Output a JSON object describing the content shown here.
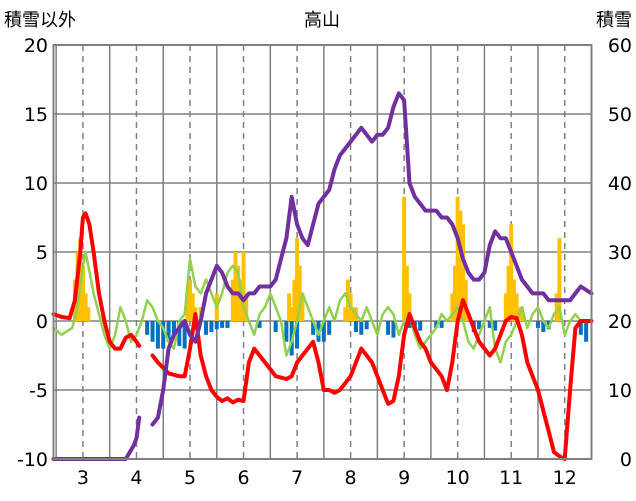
{
  "chart_data": {
    "type": "line",
    "title": "高山",
    "ylabel": "積雪以外",
    "y2label": "積雪",
    "ylim": [
      -10,
      20
    ],
    "y2lim": [
      0,
      60
    ],
    "xlim": [
      2.45,
      12.5
    ],
    "yticks": [
      "20",
      "15",
      "10",
      "5",
      "0",
      "-5",
      "-10"
    ],
    "y2ticks": [
      "60",
      "50",
      "40",
      "30",
      "20",
      "10",
      "0"
    ],
    "xticks": [
      "3",
      "4",
      "5",
      "6",
      "7",
      "8",
      "9",
      "10",
      "11",
      "12"
    ],
    "grid": true,
    "colors": {
      "red_line": "#ff0000",
      "purple_line": "#7030a0",
      "green_line": "#92d050",
      "yellow_bar": "#ffc000",
      "blue_bar": "#0070c0"
    },
    "series": [
      {
        "color": "#ff0000",
        "axis": "left",
        "type": "line",
        "x": [
          2.45,
          2.6,
          2.75,
          2.85,
          2.95,
          3.0,
          3.05,
          3.12,
          3.2,
          3.3,
          3.4,
          3.5,
          3.6,
          3.7,
          3.8,
          3.9,
          4.0,
          4.05,
          null,
          4.3,
          4.4,
          4.6,
          4.8,
          4.9,
          5.0,
          5.1,
          5.2,
          5.3,
          5.4,
          5.5,
          5.6,
          5.7,
          5.8,
          5.9,
          6.0,
          6.1,
          6.2,
          6.4,
          6.6,
          6.8,
          6.9,
          7.0,
          7.1,
          7.2,
          7.3,
          7.4,
          7.5,
          7.6,
          7.7,
          7.8,
          7.9,
          8.0,
          8.1,
          8.2,
          8.3,
          8.4,
          8.5,
          8.6,
          8.7,
          8.8,
          8.9,
          9.0,
          9.1,
          9.2,
          9.3,
          9.4,
          9.5,
          9.6,
          9.7,
          9.8,
          9.9,
          10.0,
          10.1,
          10.2,
          10.3,
          10.4,
          10.5,
          10.6,
          10.7,
          10.8,
          10.9,
          11.0,
          11.1,
          11.2,
          11.3,
          11.4,
          11.5,
          11.6,
          11.7,
          11.8,
          11.9,
          12.0,
          12.1,
          12.2,
          12.3,
          12.5
        ],
        "y": [
          0.5,
          0.3,
          0.2,
          1.5,
          5.0,
          7.5,
          7.8,
          7.0,
          5.0,
          2.0,
          0.0,
          -1.5,
          -2.0,
          -2.0,
          -1.2,
          -1.0,
          -1.5,
          -1.8,
          null,
          -2.5,
          -3.0,
          -3.8,
          -4.0,
          -4.0,
          -2.0,
          0.5,
          -2.5,
          -4.0,
          -5.0,
          -5.5,
          -5.8,
          -5.6,
          -5.9,
          -5.7,
          -5.8,
          -3.0,
          -2.0,
          -3.0,
          -4.0,
          -4.2,
          -4.0,
          -3.0,
          -2.5,
          -2.0,
          -1.5,
          -3.0,
          -5.0,
          -5.0,
          -5.2,
          -5.0,
          -4.5,
          -4.0,
          -3.0,
          -2.0,
          -2.5,
          -3.0,
          -4.0,
          -5.0,
          -6.0,
          -5.8,
          -4.0,
          -1.0,
          0.5,
          -0.5,
          -1.5,
          -2.0,
          -3.0,
          -3.5,
          -4.0,
          -5.0,
          -3.0,
          0.0,
          1.5,
          0.5,
          -0.5,
          -1.5,
          -2.0,
          -2.5,
          -2.0,
          -1.0,
          0.0,
          0.3,
          0.2,
          -1.0,
          -3.0,
          -4.0,
          -5.0,
          -6.5,
          -8.0,
          -9.5,
          -9.8,
          -10.0,
          -5.0,
          -0.5,
          0.0,
          0.0
        ]
      },
      {
        "color": "#7030a0",
        "axis": "right",
        "type": "line",
        "x": [
          2.45,
          3.0,
          3.5,
          3.8,
          3.95,
          4.0,
          4.05,
          null,
          4.3,
          4.4,
          4.5,
          4.6,
          4.7,
          4.8,
          4.9,
          5.0,
          5.1,
          5.2,
          5.3,
          5.4,
          5.5,
          5.6,
          5.7,
          5.8,
          5.9,
          6.0,
          6.1,
          6.2,
          6.3,
          6.4,
          6.5,
          6.6,
          6.7,
          6.8,
          6.9,
          6.95,
          7.0,
          7.1,
          7.2,
          7.3,
          7.4,
          7.5,
          7.6,
          7.7,
          7.8,
          7.9,
          8.0,
          8.1,
          8.2,
          8.3,
          8.4,
          8.5,
          8.6,
          8.7,
          8.8,
          8.9,
          9.0,
          9.1,
          9.2,
          9.3,
          9.4,
          9.5,
          9.6,
          9.7,
          9.8,
          9.9,
          10.0,
          10.1,
          10.2,
          10.3,
          10.4,
          10.5,
          10.6,
          10.7,
          10.8,
          10.9,
          11.0,
          11.1,
          11.2,
          11.3,
          11.4,
          11.5,
          11.6,
          11.7,
          11.8,
          11.9,
          12.0,
          12.1,
          12.2,
          12.3,
          12.5
        ],
        "y": [
          0,
          0,
          0,
          0,
          2,
          3,
          6,
          null,
          5,
          6,
          10,
          16,
          18,
          19,
          20,
          18,
          17,
          20,
          24,
          26,
          28,
          27,
          25,
          24,
          24,
          23,
          24,
          24,
          25,
          25,
          25,
          26,
          29,
          32,
          38,
          36,
          34,
          32,
          31,
          34,
          37,
          38,
          39,
          42,
          44,
          45,
          46,
          47,
          48,
          47,
          46,
          47,
          47,
          48,
          51,
          53,
          52,
          40,
          38,
          37,
          36,
          36,
          36,
          35,
          35,
          34,
          32,
          29,
          27,
          26,
          26,
          27,
          31,
          33,
          32,
          32,
          30,
          28,
          26,
          25,
          24,
          24,
          24,
          23,
          23,
          23,
          23,
          23,
          24,
          25,
          24
        ]
      },
      {
        "color": "#92d050",
        "axis": "left",
        "type": "line",
        "x": [
          2.45,
          2.6,
          2.8,
          2.9,
          3.0,
          3.05,
          3.1,
          3.2,
          3.3,
          3.4,
          3.5,
          3.6,
          3.7,
          3.8,
          3.9,
          4.0,
          4.1,
          4.2,
          4.3,
          4.4,
          4.5,
          4.6,
          4.7,
          4.8,
          4.9,
          5.0,
          5.1,
          5.2,
          5.3,
          5.4,
          5.5,
          5.6,
          5.7,
          5.8,
          5.9,
          6.0,
          6.1,
          6.2,
          6.3,
          6.4,
          6.5,
          6.6,
          6.7,
          6.8,
          6.9,
          7.0,
          7.1,
          7.2,
          7.3,
          7.4,
          7.5,
          7.6,
          7.7,
          7.8,
          7.9,
          8.0,
          8.1,
          8.2,
          8.3,
          8.4,
          8.5,
          8.6,
          8.7,
          8.8,
          8.9,
          9.0,
          9.1,
          9.2,
          9.3,
          9.4,
          9.5,
          9.6,
          9.7,
          9.8,
          9.9,
          10.0,
          10.1,
          10.2,
          10.3,
          10.4,
          10.5,
          10.6,
          10.7,
          10.8,
          10.9,
          11.0,
          11.1,
          11.2,
          11.3,
          11.4,
          11.5,
          11.6,
          11.7,
          11.8,
          11.9,
          12.0,
          12.1,
          12.2,
          12.3,
          12.5
        ],
        "y": [
          -0.5,
          -1.0,
          -0.5,
          1.0,
          4.0,
          5.0,
          4.0,
          2.0,
          0.5,
          -1.0,
          -2.0,
          -1.0,
          1.0,
          0.0,
          -1.5,
          -1.0,
          0.0,
          1.5,
          1.0,
          0.0,
          -0.5,
          -1.5,
          -2.0,
          0.0,
          0.5,
          4.5,
          2.5,
          2.0,
          3.0,
          2.0,
          1.0,
          2.0,
          3.5,
          4.0,
          3.5,
          1.0,
          0.0,
          -1.0,
          0.5,
          1.0,
          2.0,
          1.0,
          0.0,
          -2.5,
          -1.5,
          0.0,
          2.0,
          1.0,
          0.0,
          -1.0,
          0.0,
          1.0,
          0.0,
          1.5,
          2.0,
          1.0,
          0.5,
          0.0,
          1.0,
          0.0,
          -1.0,
          0.5,
          1.0,
          0.5,
          -1.0,
          0.0,
          0.5,
          -1.0,
          -2.0,
          -1.5,
          -1.0,
          -0.5,
          0.5,
          0.0,
          0.5,
          1.0,
          0.0,
          -1.5,
          -2.0,
          -1.0,
          0.0,
          1.0,
          -2.0,
          -3.0,
          -1.5,
          -1.0,
          0.0,
          1.0,
          -0.5,
          0.5,
          1.0,
          0.0,
          -0.5,
          0.5,
          1.0,
          -1.0,
          0.0,
          0.5,
          0.0,
          0.0
        ]
      },
      {
        "color": "#ffc000",
        "axis": "left",
        "type": "bar",
        "x": [
          2.85,
          2.9,
          2.95,
          3.0,
          3.05,
          3.1,
          4.95,
          5.0,
          5.05,
          5.1,
          5.2,
          5.5,
          5.8,
          5.85,
          5.9,
          5.95,
          6.0,
          6.05,
          6.85,
          6.9,
          6.95,
          7.0,
          7.05,
          7.1,
          7.9,
          7.95,
          8.0,
          8.05,
          8.1,
          9.0,
          9.05,
          9.1,
          9.9,
          9.95,
          10.0,
          10.05,
          10.1,
          10.15,
          10.9,
          10.95,
          11.0,
          11.05,
          11.1,
          11.15,
          11.2,
          11.85,
          11.9
        ],
        "y": [
          3,
          5,
          6,
          4,
          2,
          1,
          2,
          3,
          2,
          1,
          1,
          2,
          3,
          5,
          4,
          3,
          5,
          2,
          2,
          1,
          3,
          6,
          4,
          2,
          1,
          3,
          2,
          1,
          1,
          9,
          4,
          2,
          2,
          4,
          9,
          8,
          7,
          3,
          2,
          4,
          7,
          3,
          2,
          1,
          1,
          2,
          6
        ]
      },
      {
        "color": "#0070c0",
        "axis": "left",
        "type": "bar",
        "x": [
          4.2,
          4.3,
          4.4,
          4.5,
          4.6,
          4.7,
          4.8,
          4.9,
          5.3,
          5.4,
          5.5,
          5.6,
          5.7,
          6.3,
          6.6,
          6.8,
          6.9,
          7.0,
          7.3,
          7.4,
          7.5,
          7.6,
          8.1,
          8.2,
          8.3,
          8.7,
          8.8,
          9.1,
          9.2,
          9.3,
          9.6,
          9.7,
          10.3,
          10.4,
          10.6,
          10.7,
          11.5,
          11.6,
          11.7,
          12.3,
          12.4
        ],
        "y": [
          -1.0,
          -1.5,
          -2.0,
          -2.0,
          -1.5,
          -1.0,
          -1.8,
          -2.0,
          -1.0,
          -0.8,
          -0.6,
          -0.5,
          -0.5,
          -0.5,
          -0.8,
          -1.5,
          -2.5,
          -2.0,
          -1.0,
          -1.5,
          -1.5,
          -1.0,
          -0.8,
          -1.0,
          -0.6,
          -1.0,
          -1.2,
          -0.5,
          -0.8,
          -0.7,
          -0.5,
          -0.5,
          -0.8,
          -0.6,
          -0.5,
          -0.7,
          -0.5,
          -0.8,
          -0.6,
          -1.0,
          -1.5
        ]
      }
    ]
  }
}
